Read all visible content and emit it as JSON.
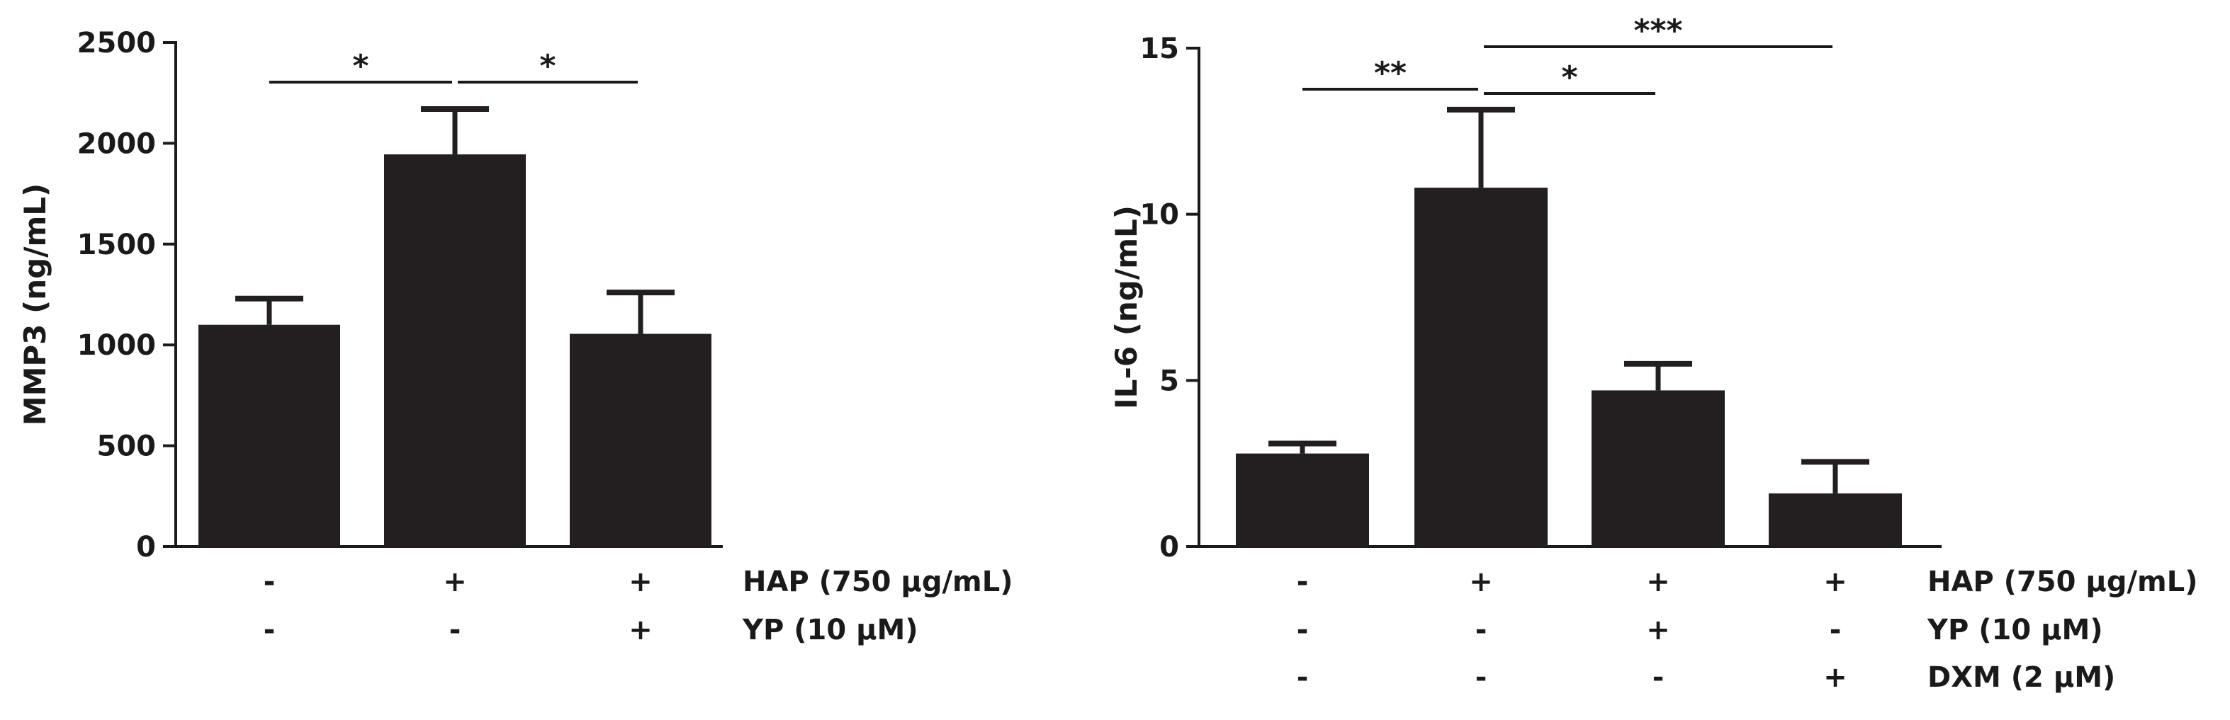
{
  "chart_data": [
    {
      "type": "bar",
      "ylabel": "MMP3 (ng/mL)",
      "ylim": [
        0,
        2500
      ],
      "yticks": [
        0,
        500,
        1000,
        1500,
        2000,
        2500
      ],
      "grid": false,
      "bar_color": "#231f20",
      "series": [
        {
          "values": [
            1100,
            1945,
            1055
          ],
          "errors": [
            130,
            225,
            205
          ]
        }
      ],
      "conditions": [
        {
          "label": "HAP (750 µg/mL)",
          "signs": [
            "-",
            "+",
            "+"
          ]
        },
        {
          "label": "YP (10 µM)",
          "signs": [
            "-",
            "-",
            "+"
          ]
        }
      ],
      "significance": [
        {
          "from": 0,
          "to": 1,
          "label": "*"
        },
        {
          "from": 1,
          "to": 2,
          "label": "*"
        }
      ]
    },
    {
      "type": "bar",
      "ylabel": "IL-6 (ng/mL)",
      "ylim": [
        0,
        15
      ],
      "yticks": [
        0,
        5,
        10,
        15
      ],
      "grid": false,
      "bar_color": "#231f20",
      "series": [
        {
          "values": [
            2.8,
            10.8,
            4.7,
            1.6
          ],
          "errors": [
            0.3,
            2.35,
            0.8,
            0.95
          ]
        }
      ],
      "conditions": [
        {
          "label": "HAP (750 µg/mL)",
          "signs": [
            "-",
            "+",
            "+",
            "+"
          ]
        },
        {
          "label": "YP (10 µM)",
          "signs": [
            "-",
            "-",
            "+",
            "-"
          ]
        },
        {
          "label": "DXM (2 µM)",
          "signs": [
            "-",
            "-",
            "-",
            "+"
          ]
        }
      ],
      "significance": [
        {
          "from": 0,
          "to": 1,
          "label": "**"
        },
        {
          "from": 1,
          "to": 2,
          "label": "*"
        },
        {
          "from": 1,
          "to": 3,
          "label": "***"
        }
      ]
    }
  ]
}
